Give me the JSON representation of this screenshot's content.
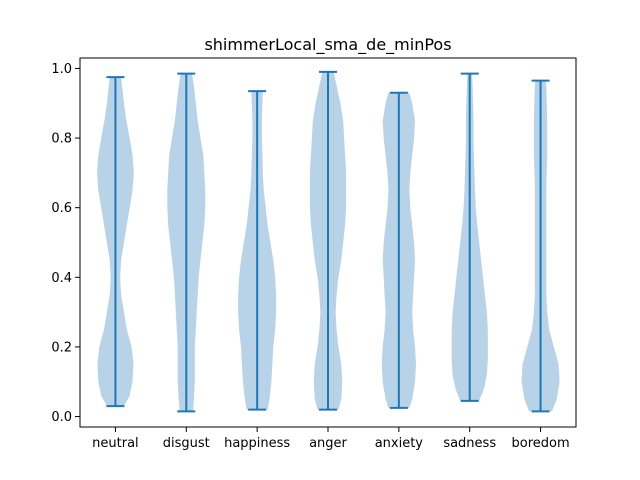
{
  "chart_data": {
    "type": "violin",
    "title": "shimmerLocal_sma_de_minPos",
    "xlabel": "",
    "ylabel": "",
    "ylim": [
      -0.03,
      1.03
    ],
    "yticks": [
      0.0,
      0.2,
      0.4,
      0.6,
      0.8,
      1.0
    ],
    "ytick_labels": [
      "0.0",
      "0.2",
      "0.4",
      "0.6",
      "0.8",
      "1.0"
    ],
    "grid": false,
    "colors": {
      "body": "#b8d3e8",
      "line": "#1f77b4"
    },
    "categories": [
      "neutral",
      "disgust",
      "happiness",
      "anger",
      "anxiety",
      "sadness",
      "boredom"
    ],
    "series": [
      {
        "min": 0.03,
        "max": 0.975,
        "density": [
          [
            0.03,
            0.45
          ],
          [
            0.06,
            0.75
          ],
          [
            0.1,
            0.9
          ],
          [
            0.15,
            0.95
          ],
          [
            0.2,
            0.85
          ],
          [
            0.25,
            0.6
          ],
          [
            0.3,
            0.45
          ],
          [
            0.35,
            0.3
          ],
          [
            0.4,
            0.25
          ],
          [
            0.45,
            0.3
          ],
          [
            0.5,
            0.45
          ],
          [
            0.55,
            0.6
          ],
          [
            0.6,
            0.75
          ],
          [
            0.65,
            0.9
          ],
          [
            0.7,
            0.97
          ],
          [
            0.75,
            0.9
          ],
          [
            0.8,
            0.75
          ],
          [
            0.85,
            0.58
          ],
          [
            0.9,
            0.45
          ],
          [
            0.95,
            0.35
          ],
          [
            0.975,
            0.3
          ]
        ]
      },
      {
        "min": 0.015,
        "max": 0.985,
        "density": [
          [
            0.015,
            0.35
          ],
          [
            0.05,
            0.4
          ],
          [
            0.1,
            0.45
          ],
          [
            0.15,
            0.45
          ],
          [
            0.2,
            0.45
          ],
          [
            0.25,
            0.5
          ],
          [
            0.3,
            0.55
          ],
          [
            0.35,
            0.6
          ],
          [
            0.4,
            0.65
          ],
          [
            0.45,
            0.75
          ],
          [
            0.5,
            0.85
          ],
          [
            0.55,
            0.95
          ],
          [
            0.6,
            1.0
          ],
          [
            0.65,
            1.0
          ],
          [
            0.7,
            0.95
          ],
          [
            0.75,
            0.9
          ],
          [
            0.8,
            0.75
          ],
          [
            0.85,
            0.6
          ],
          [
            0.9,
            0.5
          ],
          [
            0.95,
            0.4
          ],
          [
            0.985,
            0.3
          ]
        ]
      },
      {
        "min": 0.02,
        "max": 0.935,
        "density": [
          [
            0.02,
            0.55
          ],
          [
            0.05,
            0.65
          ],
          [
            0.1,
            0.75
          ],
          [
            0.15,
            0.8
          ],
          [
            0.2,
            0.85
          ],
          [
            0.25,
            0.95
          ],
          [
            0.3,
            1.0
          ],
          [
            0.35,
            1.0
          ],
          [
            0.4,
            0.95
          ],
          [
            0.45,
            0.85
          ],
          [
            0.5,
            0.7
          ],
          [
            0.55,
            0.55
          ],
          [
            0.6,
            0.45
          ],
          [
            0.65,
            0.35
          ],
          [
            0.7,
            0.3
          ],
          [
            0.75,
            0.28
          ],
          [
            0.8,
            0.25
          ],
          [
            0.85,
            0.25
          ],
          [
            0.9,
            0.28
          ],
          [
            0.935,
            0.3
          ]
        ]
      },
      {
        "min": 0.02,
        "max": 0.99,
        "density": [
          [
            0.02,
            0.55
          ],
          [
            0.05,
            0.7
          ],
          [
            0.1,
            0.75
          ],
          [
            0.15,
            0.7
          ],
          [
            0.2,
            0.55
          ],
          [
            0.25,
            0.45
          ],
          [
            0.3,
            0.4
          ],
          [
            0.35,
            0.45
          ],
          [
            0.4,
            0.55
          ],
          [
            0.45,
            0.7
          ],
          [
            0.5,
            0.8
          ],
          [
            0.55,
            0.9
          ],
          [
            0.6,
            0.95
          ],
          [
            0.65,
            0.95
          ],
          [
            0.7,
            0.95
          ],
          [
            0.75,
            0.9
          ],
          [
            0.8,
            0.85
          ],
          [
            0.85,
            0.8
          ],
          [
            0.9,
            0.65
          ],
          [
            0.95,
            0.45
          ],
          [
            0.99,
            0.3
          ]
        ]
      },
      {
        "min": 0.025,
        "max": 0.93,
        "density": [
          [
            0.025,
            0.55
          ],
          [
            0.05,
            0.7
          ],
          [
            0.1,
            0.85
          ],
          [
            0.15,
            0.9
          ],
          [
            0.2,
            0.85
          ],
          [
            0.25,
            0.75
          ],
          [
            0.3,
            0.7
          ],
          [
            0.35,
            0.75
          ],
          [
            0.4,
            0.8
          ],
          [
            0.45,
            0.85
          ],
          [
            0.5,
            0.8
          ],
          [
            0.55,
            0.7
          ],
          [
            0.6,
            0.6
          ],
          [
            0.65,
            0.55
          ],
          [
            0.7,
            0.6
          ],
          [
            0.75,
            0.7
          ],
          [
            0.8,
            0.8
          ],
          [
            0.85,
            0.85
          ],
          [
            0.9,
            0.7
          ],
          [
            0.93,
            0.55
          ]
        ]
      },
      {
        "min": 0.045,
        "max": 0.985,
        "density": [
          [
            0.045,
            0.5
          ],
          [
            0.08,
            0.75
          ],
          [
            0.12,
            0.9
          ],
          [
            0.16,
            0.95
          ],
          [
            0.2,
            0.95
          ],
          [
            0.25,
            0.95
          ],
          [
            0.3,
            0.9
          ],
          [
            0.35,
            0.8
          ],
          [
            0.4,
            0.7
          ],
          [
            0.45,
            0.6
          ],
          [
            0.5,
            0.5
          ],
          [
            0.55,
            0.4
          ],
          [
            0.6,
            0.32
          ],
          [
            0.65,
            0.28
          ],
          [
            0.7,
            0.25
          ],
          [
            0.75,
            0.22
          ],
          [
            0.8,
            0.2
          ],
          [
            0.85,
            0.2
          ],
          [
            0.9,
            0.18
          ],
          [
            0.95,
            0.15
          ],
          [
            0.985,
            0.12
          ]
        ]
      },
      {
        "min": 0.015,
        "max": 0.965,
        "density": [
          [
            0.015,
            0.6
          ],
          [
            0.05,
            0.85
          ],
          [
            0.1,
            1.0
          ],
          [
            0.15,
            0.95
          ],
          [
            0.2,
            0.7
          ],
          [
            0.25,
            0.45
          ],
          [
            0.3,
            0.35
          ],
          [
            0.35,
            0.3
          ],
          [
            0.4,
            0.3
          ],
          [
            0.45,
            0.3
          ],
          [
            0.5,
            0.3
          ],
          [
            0.55,
            0.3
          ],
          [
            0.6,
            0.3
          ],
          [
            0.65,
            0.3
          ],
          [
            0.7,
            0.32
          ],
          [
            0.75,
            0.35
          ],
          [
            0.8,
            0.35
          ],
          [
            0.85,
            0.35
          ],
          [
            0.9,
            0.33
          ],
          [
            0.95,
            0.3
          ],
          [
            0.965,
            0.28
          ]
        ]
      }
    ]
  }
}
